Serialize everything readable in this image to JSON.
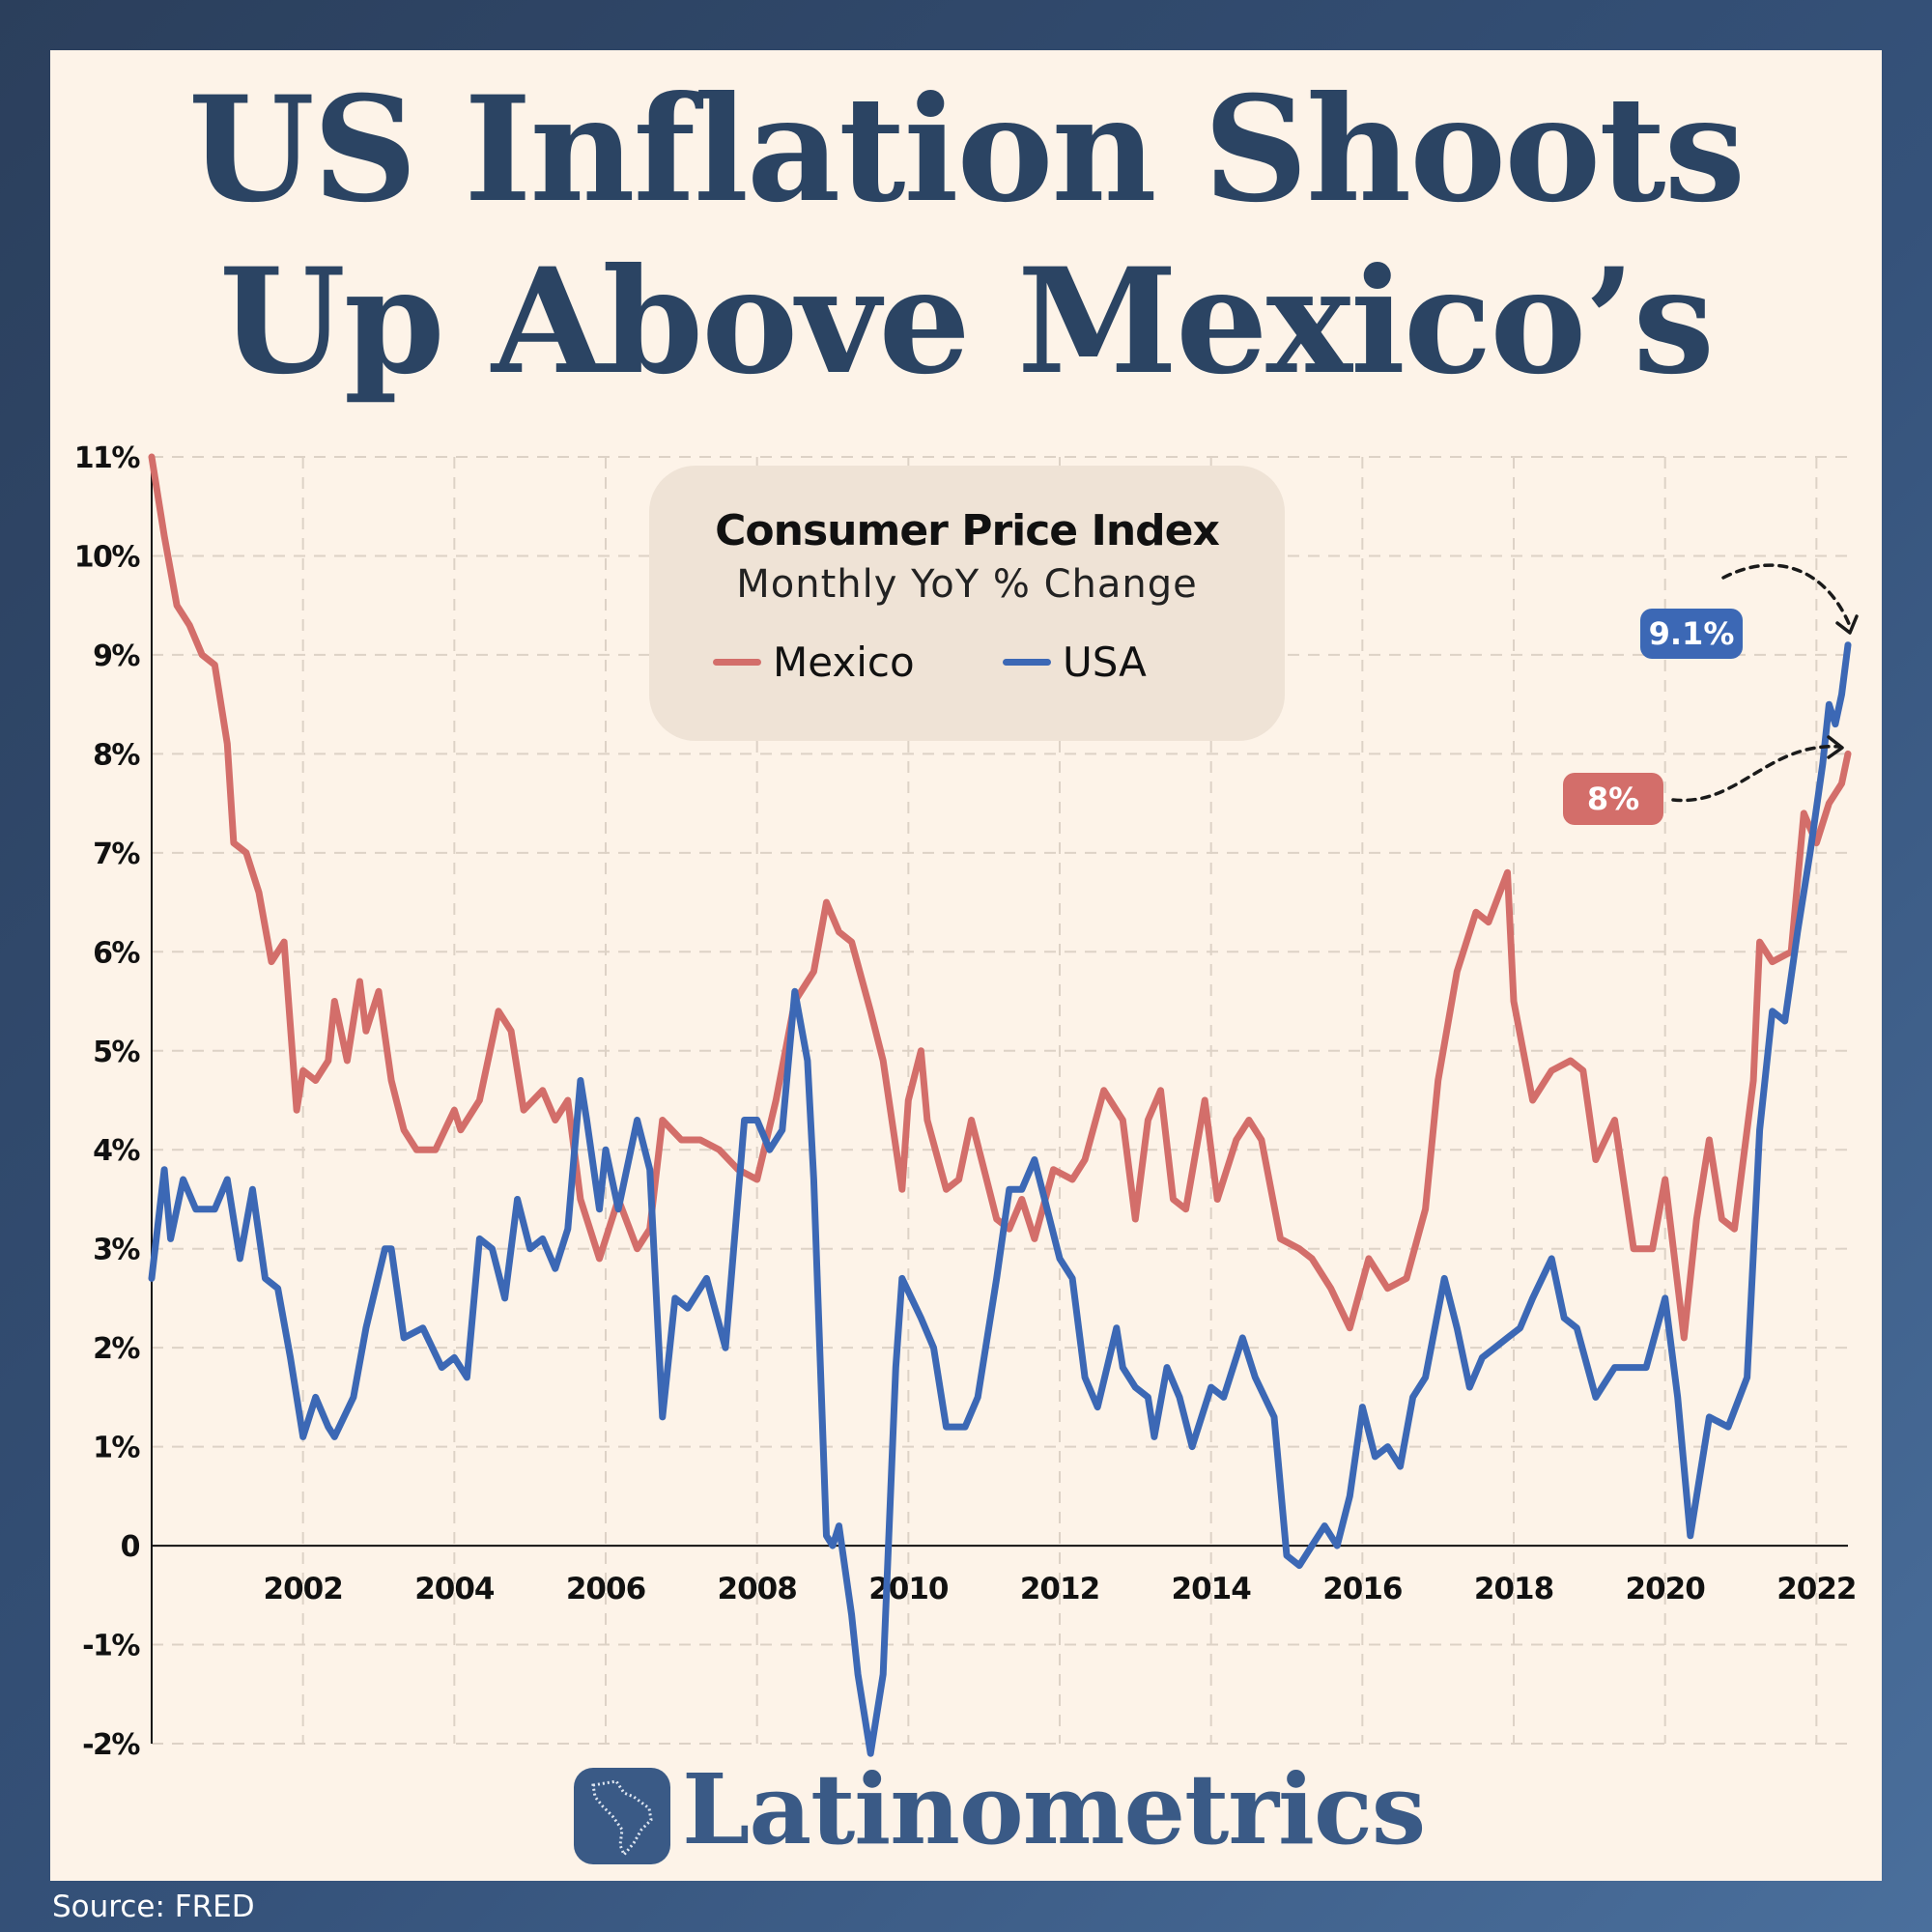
{
  "title_lines": [
    "US Inflation Shoots",
    "Up Above Mexico’s"
  ],
  "source": "Source: FRED",
  "brand": "Latinometrics",
  "colors": {
    "mexico": "#d36e6a",
    "usa": "#3c68b5",
    "title": "#2b4463",
    "card": "#fdf3e8",
    "legend_box": "#efe3d6"
  },
  "chart_data": {
    "type": "line",
    "title": "Consumer Price Index",
    "subtitle": "Monthly YoY % Change",
    "xlim": [
      "2000-01",
      "2022-06"
    ],
    "ylim": [
      -2,
      11
    ],
    "y_ticks": [
      "11%",
      "10%",
      "9%",
      "8%",
      "7%",
      "6%",
      "5%",
      "4%",
      "3%",
      "2%",
      "1%",
      "0",
      "-1%",
      "-2%"
    ],
    "y_tick_values": [
      11,
      10,
      9,
      8,
      7,
      6,
      5,
      4,
      3,
      2,
      1,
      0,
      -1,
      -2
    ],
    "x_ticks": [
      "2002",
      "2004",
      "2006",
      "2008",
      "2010",
      "2012",
      "2014",
      "2016",
      "2018",
      "2020",
      "2022"
    ],
    "grid": true,
    "legend_position": "top-center",
    "annotations": [
      {
        "series": "USA",
        "text": "9.1%",
        "x": "2022-06",
        "y": 9.1
      },
      {
        "series": "Mexico",
        "text": "8%",
        "x": "2022-06",
        "y": 8.0
      }
    ],
    "series": [
      {
        "name": "Mexico",
        "color": "#d36e6a",
        "points": [
          [
            "2000-01",
            11.0
          ],
          [
            "2000-03",
            10.2
          ],
          [
            "2000-05",
            9.5
          ],
          [
            "2000-07",
            9.3
          ],
          [
            "2000-09",
            9.0
          ],
          [
            "2000-11",
            8.9
          ],
          [
            "2001-01",
            8.1
          ],
          [
            "2001-02",
            7.1
          ],
          [
            "2001-04",
            7.0
          ],
          [
            "2001-06",
            6.6
          ],
          [
            "2001-08",
            5.9
          ],
          [
            "2001-10",
            6.1
          ],
          [
            "2001-12",
            4.4
          ],
          [
            "2002-01",
            4.8
          ],
          [
            "2002-03",
            4.7
          ],
          [
            "2002-05",
            4.9
          ],
          [
            "2002-06",
            5.5
          ],
          [
            "2002-08",
            4.9
          ],
          [
            "2002-10",
            5.7
          ],
          [
            "2002-11",
            5.2
          ],
          [
            "2003-01",
            5.6
          ],
          [
            "2003-03",
            4.7
          ],
          [
            "2003-05",
            4.2
          ],
          [
            "2003-07",
            4.0
          ],
          [
            "2003-10",
            4.0
          ],
          [
            "2004-01",
            4.4
          ],
          [
            "2004-02",
            4.2
          ],
          [
            "2004-05",
            4.5
          ],
          [
            "2004-08",
            5.4
          ],
          [
            "2004-10",
            5.2
          ],
          [
            "2004-12",
            4.4
          ],
          [
            "2005-03",
            4.6
          ],
          [
            "2005-05",
            4.3
          ],
          [
            "2005-07",
            4.5
          ],
          [
            "2005-09",
            3.5
          ],
          [
            "2005-12",
            2.9
          ],
          [
            "2006-03",
            3.5
          ],
          [
            "2006-06",
            3.0
          ],
          [
            "2006-08",
            3.2
          ],
          [
            "2006-10",
            4.3
          ],
          [
            "2007-01",
            4.1
          ],
          [
            "2007-04",
            4.1
          ],
          [
            "2007-07",
            4.0
          ],
          [
            "2007-10",
            3.8
          ],
          [
            "2008-01",
            3.7
          ],
          [
            "2008-04",
            4.5
          ],
          [
            "2008-07",
            5.5
          ],
          [
            "2008-10",
            5.8
          ],
          [
            "2008-12",
            6.5
          ],
          [
            "2009-02",
            6.2
          ],
          [
            "2009-04",
            6.1
          ],
          [
            "2009-07",
            5.4
          ],
          [
            "2009-09",
            4.9
          ],
          [
            "2009-12",
            3.6
          ],
          [
            "2010-01",
            4.5
          ],
          [
            "2010-03",
            5.0
          ],
          [
            "2010-04",
            4.3
          ],
          [
            "2010-07",
            3.6
          ],
          [
            "2010-09",
            3.7
          ],
          [
            "2010-11",
            4.3
          ],
          [
            "2011-01",
            3.8
          ],
          [
            "2011-03",
            3.3
          ],
          [
            "2011-05",
            3.2
          ],
          [
            "2011-07",
            3.5
          ],
          [
            "2011-09",
            3.1
          ],
          [
            "2011-12",
            3.8
          ],
          [
            "2012-03",
            3.7
          ],
          [
            "2012-05",
            3.9
          ],
          [
            "2012-08",
            4.6
          ],
          [
            "2012-11",
            4.3
          ],
          [
            "2013-01",
            3.3
          ],
          [
            "2013-03",
            4.3
          ],
          [
            "2013-05",
            4.6
          ],
          [
            "2013-07",
            3.5
          ],
          [
            "2013-09",
            3.4
          ],
          [
            "2013-12",
            4.5
          ],
          [
            "2014-02",
            3.5
          ],
          [
            "2014-05",
            4.1
          ],
          [
            "2014-07",
            4.3
          ],
          [
            "2014-09",
            4.1
          ],
          [
            "2014-12",
            3.1
          ],
          [
            "2015-03",
            3.0
          ],
          [
            "2015-05",
            2.9
          ],
          [
            "2015-08",
            2.6
          ],
          [
            "2015-11",
            2.2
          ],
          [
            "2016-02",
            2.9
          ],
          [
            "2016-05",
            2.6
          ],
          [
            "2016-08",
            2.7
          ],
          [
            "2016-11",
            3.4
          ],
          [
            "2017-01",
            4.7
          ],
          [
            "2017-04",
            5.8
          ],
          [
            "2017-07",
            6.4
          ],
          [
            "2017-09",
            6.3
          ],
          [
            "2017-12",
            6.8
          ],
          [
            "2018-01",
            5.5
          ],
          [
            "2018-04",
            4.5
          ],
          [
            "2018-07",
            4.8
          ],
          [
            "2018-10",
            4.9
          ],
          [
            "2018-12",
            4.8
          ],
          [
            "2019-02",
            3.9
          ],
          [
            "2019-05",
            4.3
          ],
          [
            "2019-08",
            3.0
          ],
          [
            "2019-11",
            3.0
          ],
          [
            "2020-01",
            3.7
          ],
          [
            "2020-04",
            2.1
          ],
          [
            "2020-06",
            3.3
          ],
          [
            "2020-08",
            4.1
          ],
          [
            "2020-10",
            3.3
          ],
          [
            "2020-12",
            3.2
          ],
          [
            "2021-03",
            4.7
          ],
          [
            "2021-04",
            6.1
          ],
          [
            "2021-06",
            5.9
          ],
          [
            "2021-09",
            6.0
          ],
          [
            "2021-11",
            7.4
          ],
          [
            "2022-01",
            7.1
          ],
          [
            "2022-03",
            7.5
          ],
          [
            "2022-05",
            7.7
          ],
          [
            "2022-06",
            8.0
          ]
        ]
      },
      {
        "name": "USA",
        "color": "#3c68b5",
        "points": [
          [
            "2000-01",
            2.7
          ],
          [
            "2000-03",
            3.8
          ],
          [
            "2000-04",
            3.1
          ],
          [
            "2000-06",
            3.7
          ],
          [
            "2000-08",
            3.4
          ],
          [
            "2000-11",
            3.4
          ],
          [
            "2001-01",
            3.7
          ],
          [
            "2001-03",
            2.9
          ],
          [
            "2001-05",
            3.6
          ],
          [
            "2001-07",
            2.7
          ],
          [
            "2001-09",
            2.6
          ],
          [
            "2001-11",
            1.9
          ],
          [
            "2002-01",
            1.1
          ],
          [
            "2002-03",
            1.5
          ],
          [
            "2002-05",
            1.2
          ],
          [
            "2002-06",
            1.1
          ],
          [
            "2002-09",
            1.5
          ],
          [
            "2002-11",
            2.2
          ],
          [
            "2003-02",
            3.0
          ],
          [
            "2003-03",
            3.0
          ],
          [
            "2003-05",
            2.1
          ],
          [
            "2003-08",
            2.2
          ],
          [
            "2003-11",
            1.8
          ],
          [
            "2004-01",
            1.9
          ],
          [
            "2004-03",
            1.7
          ],
          [
            "2004-05",
            3.1
          ],
          [
            "2004-07",
            3.0
          ],
          [
            "2004-09",
            2.5
          ],
          [
            "2004-11",
            3.5
          ],
          [
            "2005-01",
            3.0
          ],
          [
            "2005-03",
            3.1
          ],
          [
            "2005-05",
            2.8
          ],
          [
            "2005-07",
            3.2
          ],
          [
            "2005-09",
            4.7
          ],
          [
            "2005-10",
            4.3
          ],
          [
            "2005-12",
            3.4
          ],
          [
            "2006-01",
            4.0
          ],
          [
            "2006-03",
            3.4
          ],
          [
            "2006-06",
            4.3
          ],
          [
            "2006-08",
            3.8
          ],
          [
            "2006-10",
            1.3
          ],
          [
            "2006-12",
            2.5
          ],
          [
            "2007-02",
            2.4
          ],
          [
            "2007-05",
            2.7
          ],
          [
            "2007-08",
            2.0
          ],
          [
            "2007-11",
            4.3
          ],
          [
            "2008-01",
            4.3
          ],
          [
            "2008-03",
            4.0
          ],
          [
            "2008-05",
            4.2
          ],
          [
            "2008-07",
            5.6
          ],
          [
            "2008-09",
            4.9
          ],
          [
            "2008-10",
            3.7
          ],
          [
            "2008-12",
            0.1
          ],
          [
            "2009-01",
            0.0
          ],
          [
            "2009-02",
            0.2
          ],
          [
            "2009-04",
            -0.7
          ],
          [
            "2009-05",
            -1.3
          ],
          [
            "2009-07",
            -2.1
          ],
          [
            "2009-09",
            -1.3
          ],
          [
            "2009-11",
            1.8
          ],
          [
            "2009-12",
            2.7
          ],
          [
            "2010-03",
            2.3
          ],
          [
            "2010-05",
            2.0
          ],
          [
            "2010-07",
            1.2
          ],
          [
            "2010-10",
            1.2
          ],
          [
            "2010-12",
            1.5
          ],
          [
            "2011-03",
            2.7
          ],
          [
            "2011-05",
            3.6
          ],
          [
            "2011-07",
            3.6
          ],
          [
            "2011-09",
            3.9
          ],
          [
            "2011-11",
            3.4
          ],
          [
            "2012-01",
            2.9
          ],
          [
            "2012-03",
            2.7
          ],
          [
            "2012-05",
            1.7
          ],
          [
            "2012-07",
            1.4
          ],
          [
            "2012-10",
            2.2
          ],
          [
            "2012-11",
            1.8
          ],
          [
            "2013-01",
            1.6
          ],
          [
            "2013-03",
            1.5
          ],
          [
            "2013-04",
            1.1
          ],
          [
            "2013-06",
            1.8
          ],
          [
            "2013-08",
            1.5
          ],
          [
            "2013-10",
            1.0
          ],
          [
            "2014-01",
            1.6
          ],
          [
            "2014-03",
            1.5
          ],
          [
            "2014-06",
            2.1
          ],
          [
            "2014-08",
            1.7
          ],
          [
            "2014-11",
            1.3
          ],
          [
            "2015-01",
            -0.1
          ],
          [
            "2015-03",
            -0.2
          ],
          [
            "2015-05",
            0.0
          ],
          [
            "2015-07",
            0.2
          ],
          [
            "2015-09",
            0.0
          ],
          [
            "2015-11",
            0.5
          ],
          [
            "2016-01",
            1.4
          ],
          [
            "2016-03",
            0.9
          ],
          [
            "2016-05",
            1.0
          ],
          [
            "2016-07",
            0.8
          ],
          [
            "2016-09",
            1.5
          ],
          [
            "2016-11",
            1.7
          ],
          [
            "2017-02",
            2.7
          ],
          [
            "2017-04",
            2.2
          ],
          [
            "2017-06",
            1.6
          ],
          [
            "2017-08",
            1.9
          ],
          [
            "2017-10",
            2.0
          ],
          [
            "2017-12",
            2.1
          ],
          [
            "2018-02",
            2.2
          ],
          [
            "2018-04",
            2.5
          ],
          [
            "2018-07",
            2.9
          ],
          [
            "2018-09",
            2.3
          ],
          [
            "2018-11",
            2.2
          ],
          [
            "2019-02",
            1.5
          ],
          [
            "2019-05",
            1.8
          ],
          [
            "2019-07",
            1.8
          ],
          [
            "2019-10",
            1.8
          ],
          [
            "2020-01",
            2.5
          ],
          [
            "2020-03",
            1.5
          ],
          [
            "2020-05",
            0.1
          ],
          [
            "2020-08",
            1.3
          ],
          [
            "2020-11",
            1.2
          ],
          [
            "2021-02",
            1.7
          ],
          [
            "2021-04",
            4.2
          ],
          [
            "2021-06",
            5.4
          ],
          [
            "2021-08",
            5.3
          ],
          [
            "2021-10",
            6.2
          ],
          [
            "2021-12",
            7.0
          ],
          [
            "2022-02",
            7.9
          ],
          [
            "2022-03",
            8.5
          ],
          [
            "2022-04",
            8.3
          ],
          [
            "2022-05",
            8.6
          ],
          [
            "2022-06",
            9.1
          ]
        ]
      }
    ]
  }
}
